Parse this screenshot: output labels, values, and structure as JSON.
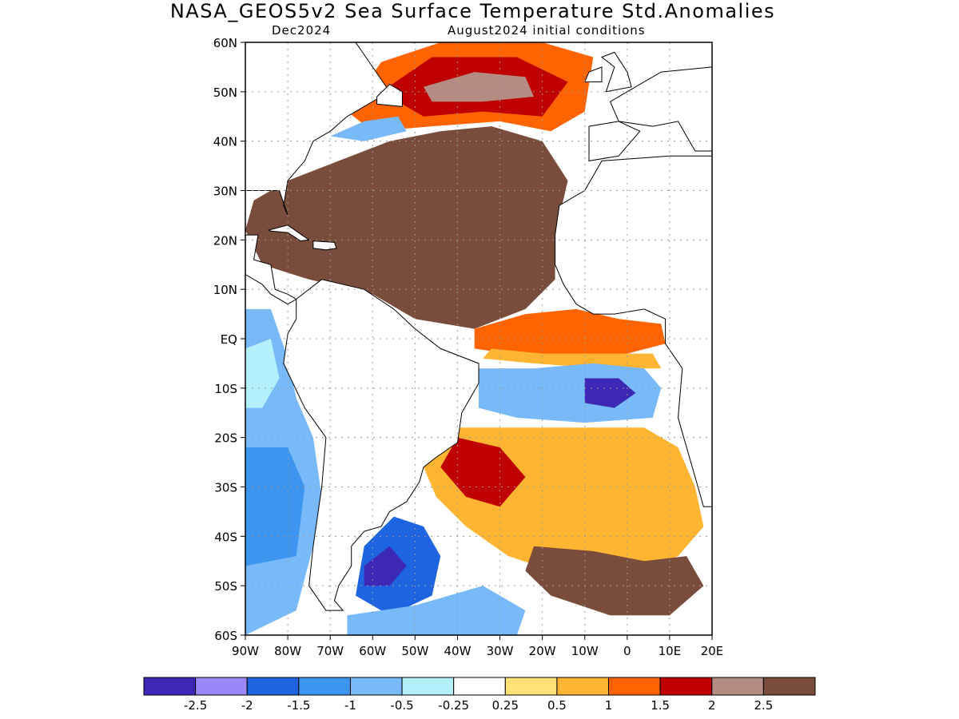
{
  "title": "NASA_GEOS5v2 Sea Surface Temperature Std.Anomalies",
  "subtitle_left": "Dec2024",
  "subtitle_right": "August2024 initial conditions",
  "map": {
    "lon_range": [
      -90,
      20
    ],
    "lat_range": [
      -60,
      60
    ],
    "lat_ticks": [
      {
        "v": 60,
        "label": "60N"
      },
      {
        "v": 50,
        "label": "50N"
      },
      {
        "v": 40,
        "label": "40N"
      },
      {
        "v": 30,
        "label": "30N"
      },
      {
        "v": 20,
        "label": "20N"
      },
      {
        "v": 10,
        "label": "10N"
      },
      {
        "v": 0,
        "label": "EQ"
      },
      {
        "v": -10,
        "label": "10S"
      },
      {
        "v": -20,
        "label": "20S"
      },
      {
        "v": -30,
        "label": "30S"
      },
      {
        "v": -40,
        "label": "40S"
      },
      {
        "v": -50,
        "label": "50S"
      },
      {
        "v": -60,
        "label": "60S"
      }
    ],
    "lon_ticks": [
      {
        "v": -90,
        "label": "90W"
      },
      {
        "v": -80,
        "label": "80W"
      },
      {
        "v": -70,
        "label": "70W"
      },
      {
        "v": -60,
        "label": "60W"
      },
      {
        "v": -50,
        "label": "50W"
      },
      {
        "v": -40,
        "label": "40W"
      },
      {
        "v": -30,
        "label": "30W"
      },
      {
        "v": -20,
        "label": "20W"
      },
      {
        "v": -10,
        "label": "10W"
      },
      {
        "v": 0,
        "label": "0"
      },
      {
        "v": 10,
        "label": "10E"
      },
      {
        "v": 20,
        "label": "20E"
      }
    ]
  },
  "colorbar": {
    "colors": [
      "#3c28b4",
      "#9b87f5",
      "#1e64e1",
      "#3c96f0",
      "#78b9fa",
      "#b4f0fa",
      "#ffffff",
      "#ffe178",
      "#ffb432",
      "#ff6400",
      "#c00000",
      "#b48c82",
      "#7a4c3c"
    ],
    "labels": [
      "-2.5",
      "-2",
      "-1.5",
      "-1",
      "-0.5",
      "-0.25",
      "0.25",
      "0.5",
      "1",
      "1.5",
      "2",
      "2.5"
    ]
  },
  "regions": [
    {
      "name": "north-atlantic-warm",
      "fill": "#7a4c3c",
      "pts": [
        [
          -80,
          32
        ],
        [
          -68,
          36
        ],
        [
          -56,
          40
        ],
        [
          -44,
          42
        ],
        [
          -32,
          43
        ],
        [
          -20,
          40
        ],
        [
          -14,
          32
        ],
        [
          -17,
          21
        ],
        [
          -17,
          12
        ],
        [
          -24,
          6
        ],
        [
          -36,
          2
        ],
        [
          -50,
          4
        ],
        [
          -60,
          9
        ],
        [
          -75,
          12
        ],
        [
          -86,
          15
        ],
        [
          -90,
          22
        ],
        [
          -88,
          28
        ]
      ]
    },
    {
      "name": "subpolar-north",
      "fill": "#ff6400",
      "pts": [
        [
          -66,
          46
        ],
        [
          -58,
          56
        ],
        [
          -44,
          60
        ],
        [
          -20,
          60
        ],
        [
          -8,
          57
        ],
        [
          -10,
          46
        ],
        [
          -18,
          42
        ],
        [
          -30,
          44
        ],
        [
          -46,
          43
        ],
        [
          -60,
          42
        ]
      ]
    },
    {
      "name": "subpolar-north-red",
      "fill": "#c00000",
      "pts": [
        [
          -58,
          50
        ],
        [
          -46,
          57
        ],
        [
          -26,
          57
        ],
        [
          -14,
          52
        ],
        [
          -20,
          45
        ],
        [
          -34,
          46
        ],
        [
          -48,
          45
        ]
      ]
    },
    {
      "name": "subpolar-north-brown",
      "fill": "#b48c82",
      "pts": [
        [
          -48,
          51
        ],
        [
          -36,
          54
        ],
        [
          -24,
          53
        ],
        [
          -22,
          49
        ],
        [
          -34,
          48
        ],
        [
          -46,
          48
        ]
      ]
    },
    {
      "name": "gulf-stream-blue",
      "fill": "#78b9fa",
      "pts": [
        [
          -70,
          41
        ],
        [
          -62,
          44
        ],
        [
          -54,
          45
        ],
        [
          -52,
          42
        ],
        [
          -62,
          40
        ]
      ]
    },
    {
      "name": "equatorial-band",
      "fill": "#ff6400",
      "pts": [
        [
          -36,
          2
        ],
        [
          -24,
          5
        ],
        [
          -12,
          6
        ],
        [
          -2,
          4
        ],
        [
          8,
          3
        ],
        [
          9,
          -1
        ],
        [
          0,
          -3
        ],
        [
          -14,
          -4
        ],
        [
          -28,
          -3
        ],
        [
          -36,
          -2
        ]
      ]
    },
    {
      "name": "equatorial-yellow",
      "fill": "#ffb432",
      "pts": [
        [
          -32,
          -2
        ],
        [
          -20,
          -3
        ],
        [
          -6,
          -3
        ],
        [
          6,
          -3
        ],
        [
          8,
          -6
        ],
        [
          -6,
          -6
        ],
        [
          -22,
          -5
        ],
        [
          -34,
          -4
        ]
      ]
    },
    {
      "name": "south-atlantic-cool",
      "fill": "#78b9fa",
      "pts": [
        [
          -35,
          -6
        ],
        [
          -22,
          -6
        ],
        [
          -8,
          -5
        ],
        [
          4,
          -6
        ],
        [
          8,
          -10
        ],
        [
          6,
          -16
        ],
        [
          -10,
          -17
        ],
        [
          -26,
          -16
        ],
        [
          -35,
          -14
        ]
      ]
    },
    {
      "name": "south-atlantic-cold-core",
      "fill": "#3c28b4",
      "pts": [
        [
          -10,
          -8
        ],
        [
          -2,
          -8
        ],
        [
          2,
          -11
        ],
        [
          -3,
          -14
        ],
        [
          -10,
          -13
        ]
      ]
    },
    {
      "name": "south-atlantic-mid",
      "fill": "#ffb432",
      "pts": [
        [
          -40,
          -18
        ],
        [
          -28,
          -18
        ],
        [
          -12,
          -18
        ],
        [
          4,
          -18
        ],
        [
          12,
          -22
        ],
        [
          16,
          -30
        ],
        [
          18,
          -38
        ],
        [
          12,
          -44
        ],
        [
          0,
          -48
        ],
        [
          -14,
          -48
        ],
        [
          -28,
          -44
        ],
        [
          -38,
          -38
        ],
        [
          -45,
          -32
        ],
        [
          -48,
          -26
        ]
      ]
    },
    {
      "name": "south-atlantic-red-streaks",
      "fill": "#c00000",
      "pts": [
        [
          -40,
          -20
        ],
        [
          -30,
          -22
        ],
        [
          -24,
          -28
        ],
        [
          -30,
          -34
        ],
        [
          -38,
          -32
        ],
        [
          -44,
          -26
        ]
      ]
    },
    {
      "name": "south-atlantic-brown-streaks",
      "fill": "#7a4c3c",
      "pts": [
        [
          -22,
          -42
        ],
        [
          -8,
          -43
        ],
        [
          4,
          -45
        ],
        [
          14,
          -44
        ],
        [
          18,
          -50
        ],
        [
          10,
          -56
        ],
        [
          -4,
          -56
        ],
        [
          -18,
          -52
        ],
        [
          -24,
          -47
        ]
      ]
    },
    {
      "name": "patagonia-cold",
      "fill": "#1e64e1",
      "pts": [
        [
          -62,
          -42
        ],
        [
          -55,
          -36
        ],
        [
          -48,
          -38
        ],
        [
          -44,
          -44
        ],
        [
          -46,
          -52
        ],
        [
          -56,
          -56
        ],
        [
          -64,
          -52
        ]
      ]
    },
    {
      "name": "southern-cold-core",
      "fill": "#3c28b4",
      "pts": [
        [
          -62,
          -46
        ],
        [
          -56,
          -42
        ],
        [
          -52,
          -46
        ],
        [
          -56,
          -50
        ],
        [
          -62,
          -50
        ]
      ]
    },
    {
      "name": "southern-ocean-cool",
      "fill": "#78b9fa",
      "pts": [
        [
          -66,
          -56
        ],
        [
          -50,
          -54
        ],
        [
          -34,
          -50
        ],
        [
          -24,
          -55
        ],
        [
          -26,
          -60
        ],
        [
          -66,
          -60
        ]
      ]
    },
    {
      "name": "pacific-cool",
      "fill": "#78b9fa",
      "pts": [
        [
          -90,
          6
        ],
        [
          -84,
          6
        ],
        [
          -80,
          -4
        ],
        [
          -78,
          -12
        ],
        [
          -74,
          -20
        ],
        [
          -72,
          -32
        ],
        [
          -74,
          -42
        ],
        [
          -78,
          -55
        ],
        [
          -90,
          -60
        ]
      ]
    },
    {
      "name": "pacific-blue",
      "fill": "#3c96f0",
      "pts": [
        [
          -90,
          -22
        ],
        [
          -80,
          -22
        ],
        [
          -76,
          -30
        ],
        [
          -78,
          -44
        ],
        [
          -90,
          -46
        ]
      ]
    },
    {
      "name": "pacific-pale",
      "fill": "#b4f0fa",
      "pts": [
        [
          -90,
          -2
        ],
        [
          -84,
          0
        ],
        [
          -82,
          -8
        ],
        [
          -86,
          -14
        ],
        [
          -90,
          -14
        ]
      ]
    }
  ],
  "land": [
    {
      "name": "north-america",
      "pts": [
        [
          -90,
          60
        ],
        [
          -64,
          60
        ],
        [
          -60,
          55
        ],
        [
          -56,
          50
        ],
        [
          -66,
          45
        ],
        [
          -70,
          42
        ],
        [
          -74,
          40
        ],
        [
          -76,
          36
        ],
        [
          -80,
          32
        ],
        [
          -81,
          27
        ],
        [
          -80,
          25
        ],
        [
          -82,
          30
        ],
        [
          -85,
          30
        ],
        [
          -90,
          30
        ]
      ]
    },
    {
      "name": "central-america",
      "pts": [
        [
          -90,
          21
        ],
        [
          -87,
          21
        ],
        [
          -88,
          16
        ],
        [
          -84,
          15
        ],
        [
          -83,
          10
        ],
        [
          -80,
          9
        ],
        [
          -78,
          8
        ],
        [
          -80,
          7
        ],
        [
          -84,
          9
        ],
        [
          -86,
          11
        ],
        [
          -90,
          13
        ]
      ]
    },
    {
      "name": "cuba",
      "pts": [
        [
          -84.5,
          22
        ],
        [
          -80,
          23
        ],
        [
          -75,
          20
        ],
        [
          -77,
          19.8
        ],
        [
          -80,
          21.5
        ],
        [
          -84,
          21.8
        ]
      ]
    },
    {
      "name": "hispaniola",
      "pts": [
        [
          -74,
          19.8
        ],
        [
          -69,
          19.5
        ],
        [
          -68.5,
          18.3
        ],
        [
          -71,
          18
        ],
        [
          -74,
          18.3
        ]
      ]
    },
    {
      "name": "south-america",
      "pts": [
        [
          -78,
          8
        ],
        [
          -72,
          12
        ],
        [
          -62,
          10
        ],
        [
          -55,
          6
        ],
        [
          -50,
          2
        ],
        [
          -44,
          -2
        ],
        [
          -35,
          -5
        ],
        [
          -35,
          -9
        ],
        [
          -39,
          -15
        ],
        [
          -40,
          -21
        ],
        [
          -45,
          -24
        ],
        [
          -48,
          -26
        ],
        [
          -49,
          -29
        ],
        [
          -52,
          -33
        ],
        [
          -56,
          -35
        ],
        [
          -58,
          -38
        ],
        [
          -62,
          -39
        ],
        [
          -65,
          -42
        ],
        [
          -65,
          -46
        ],
        [
          -68,
          -50
        ],
        [
          -69,
          -53
        ],
        [
          -67,
          -55
        ],
        [
          -71,
          -55
        ],
        [
          -75,
          -50
        ],
        [
          -74,
          -42
        ],
        [
          -72,
          -30
        ],
        [
          -71,
          -20
        ],
        [
          -76,
          -14
        ],
        [
          -81,
          -5
        ],
        [
          -80,
          1
        ],
        [
          -78,
          4
        ]
      ]
    },
    {
      "name": "africa",
      "pts": [
        [
          -17,
          21
        ],
        [
          -16,
          27
        ],
        [
          -10,
          30
        ],
        [
          -6,
          36
        ],
        [
          10,
          37
        ],
        [
          20,
          37
        ],
        [
          20,
          -34
        ],
        [
          18,
          -34
        ],
        [
          16,
          -28
        ],
        [
          12,
          -16
        ],
        [
          13,
          -6
        ],
        [
          9,
          -1
        ],
        [
          9,
          4
        ],
        [
          4,
          6
        ],
        [
          -3,
          5
        ],
        [
          -8,
          5
        ],
        [
          -12,
          7
        ],
        [
          -15,
          11
        ],
        [
          -17,
          15
        ]
      ]
    },
    {
      "name": "iberia",
      "pts": [
        [
          -9,
          36
        ],
        [
          -9,
          43
        ],
        [
          -2,
          44
        ],
        [
          3,
          42
        ],
        [
          0,
          39
        ],
        [
          -2,
          37
        ]
      ]
    },
    {
      "name": "europe",
      "pts": [
        [
          -2,
          44
        ],
        [
          -4,
          48
        ],
        [
          2,
          51
        ],
        [
          8,
          54
        ],
        [
          20,
          55
        ],
        [
          20,
          38
        ],
        [
          16,
          38
        ],
        [
          12,
          44
        ],
        [
          6,
          43
        ]
      ]
    },
    {
      "name": "britain",
      "pts": [
        [
          -5,
          50
        ],
        [
          1,
          51
        ],
        [
          0,
          54
        ],
        [
          -3,
          58
        ],
        [
          -6,
          57
        ],
        [
          -3,
          55
        ]
      ]
    },
    {
      "name": "ireland",
      "pts": [
        [
          -10,
          52
        ],
        [
          -6,
          52
        ],
        [
          -6,
          55
        ],
        [
          -9,
          54
        ]
      ]
    },
    {
      "name": "newfoundland",
      "pts": [
        [
          -59,
          47.5
        ],
        [
          -53,
          47
        ],
        [
          -53,
          50
        ],
        [
          -56,
          51.5
        ],
        [
          -59,
          49
        ]
      ]
    }
  ]
}
